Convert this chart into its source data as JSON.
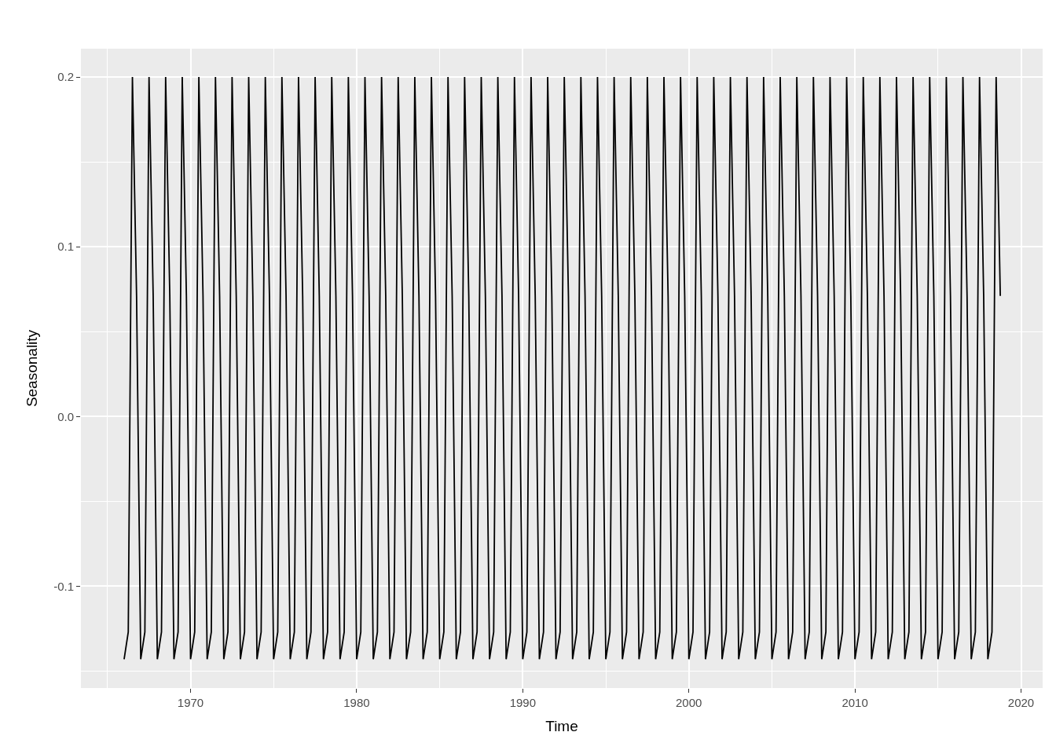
{
  "chart_data": {
    "type": "line",
    "xlabel": "Time",
    "ylabel": "Seasonality",
    "x": [
      1966,
      1966.25,
      1966.5,
      1966.75,
      1967,
      1967.25,
      1967.5,
      1967.75,
      1968,
      1968.25,
      1968.5,
      1968.75,
      1969,
      1969.25,
      1969.5,
      1969.75,
      1970,
      1970.25,
      1970.5,
      1970.75,
      1971,
      1971.25,
      1971.5,
      1971.75,
      1972,
      1972.25,
      1972.5,
      1972.75,
      1973,
      1973.25,
      1973.5,
      1973.75,
      1974,
      1974.25,
      1974.5,
      1974.75,
      1975,
      1975.25,
      1975.5,
      1975.75,
      1976,
      1976.25,
      1976.5,
      1976.75,
      1977,
      1977.25,
      1977.5,
      1977.75,
      1978,
      1978.25,
      1978.5,
      1978.75,
      1979,
      1979.25,
      1979.5,
      1979.75,
      1980,
      1980.25,
      1980.5,
      1980.75,
      1981,
      1981.25,
      1981.5,
      1981.75,
      1982,
      1982.25,
      1982.5,
      1982.75,
      1983,
      1983.25,
      1983.5,
      1983.75,
      1984,
      1984.25,
      1984.5,
      1984.75,
      1985,
      1985.25,
      1985.5,
      1985.75,
      1986,
      1986.25,
      1986.5,
      1986.75,
      1987,
      1987.25,
      1987.5,
      1987.75,
      1988,
      1988.25,
      1988.5,
      1988.75,
      1989,
      1989.25,
      1989.5,
      1989.75,
      1990,
      1990.25,
      1990.5,
      1990.75,
      1991,
      1991.25,
      1991.5,
      1991.75,
      1992,
      1992.25,
      1992.5,
      1992.75,
      1993,
      1993.25,
      1993.5,
      1993.75,
      1994,
      1994.25,
      1994.5,
      1994.75,
      1995,
      1995.25,
      1995.5,
      1995.75,
      1996,
      1996.25,
      1996.5,
      1996.75,
      1997,
      1997.25,
      1997.5,
      1997.75,
      1998,
      1998.25,
      1998.5,
      1998.75,
      1999,
      1999.25,
      1999.5,
      1999.75,
      2000,
      2000.25,
      2000.5,
      2000.75,
      2001,
      2001.25,
      2001.5,
      2001.75,
      2002,
      2002.25,
      2002.5,
      2002.75,
      2003,
      2003.25,
      2003.5,
      2003.75,
      2004,
      2004.25,
      2004.5,
      2004.75,
      2005,
      2005.25,
      2005.5,
      2005.75,
      2006,
      2006.25,
      2006.5,
      2006.75,
      2007,
      2007.25,
      2007.5,
      2007.75,
      2008,
      2008.25,
      2008.5,
      2008.75,
      2009,
      2009.25,
      2009.5,
      2009.75,
      2010,
      2010.25,
      2010.5,
      2010.75,
      2011,
      2011.25,
      2011.5,
      2011.75,
      2012,
      2012.25,
      2012.5,
      2012.75,
      2013,
      2013.25,
      2013.5,
      2013.75,
      2014,
      2014.25,
      2014.5,
      2014.75,
      2015,
      2015.25,
      2015.5,
      2015.75,
      2016,
      2016.25,
      2016.5,
      2016.75,
      2017,
      2017.25,
      2017.5,
      2017.75,
      2018,
      2018.25,
      2018.5,
      2018.75
    ],
    "series": [
      {
        "color": "#000000",
        "values": [
          -0.143,
          -0.127,
          0.2,
          0.071,
          -0.143,
          -0.127,
          0.2,
          0.071,
          -0.143,
          -0.127,
          0.2,
          0.071,
          -0.143,
          -0.127,
          0.2,
          0.071,
          -0.143,
          -0.127,
          0.2,
          0.071,
          -0.143,
          -0.127,
          0.2,
          0.071,
          -0.143,
          -0.127,
          0.2,
          0.071,
          -0.143,
          -0.127,
          0.2,
          0.071,
          -0.143,
          -0.127,
          0.2,
          0.071,
          -0.143,
          -0.127,
          0.2,
          0.071,
          -0.143,
          -0.127,
          0.2,
          0.071,
          -0.143,
          -0.127,
          0.2,
          0.071,
          -0.143,
          -0.127,
          0.2,
          0.071,
          -0.143,
          -0.127,
          0.2,
          0.071,
          -0.143,
          -0.127,
          0.2,
          0.071,
          -0.143,
          -0.127,
          0.2,
          0.071,
          -0.143,
          -0.127,
          0.2,
          0.071,
          -0.143,
          -0.127,
          0.2,
          0.071,
          -0.143,
          -0.127,
          0.2,
          0.071,
          -0.143,
          -0.127,
          0.2,
          0.071,
          -0.143,
          -0.127,
          0.2,
          0.071,
          -0.143,
          -0.127,
          0.2,
          0.071,
          -0.143,
          -0.127,
          0.2,
          0.071,
          -0.143,
          -0.127,
          0.2,
          0.071,
          -0.143,
          -0.127,
          0.2,
          0.071,
          -0.143,
          -0.127,
          0.2,
          0.071,
          -0.143,
          -0.127,
          0.2,
          0.071,
          -0.143,
          -0.127,
          0.2,
          0.071,
          -0.143,
          -0.127,
          0.2,
          0.071,
          -0.143,
          -0.127,
          0.2,
          0.071,
          -0.143,
          -0.127,
          0.2,
          0.071,
          -0.143,
          -0.127,
          0.2,
          0.071,
          -0.143,
          -0.127,
          0.2,
          0.071,
          -0.143,
          -0.127,
          0.2,
          0.071,
          -0.143,
          -0.127,
          0.2,
          0.071,
          -0.143,
          -0.127,
          0.2,
          0.071,
          -0.143,
          -0.127,
          0.2,
          0.071,
          -0.143,
          -0.127,
          0.2,
          0.071,
          -0.143,
          -0.127,
          0.2,
          0.071,
          -0.143,
          -0.127,
          0.2,
          0.071,
          -0.143,
          -0.127,
          0.2,
          0.071,
          -0.143,
          -0.127,
          0.2,
          0.071,
          -0.143,
          -0.127,
          0.2,
          0.071,
          -0.143,
          -0.127,
          0.2,
          0.071,
          -0.143,
          -0.127,
          0.2,
          0.071,
          -0.143,
          -0.127,
          0.2,
          0.071,
          -0.143,
          -0.127,
          0.2,
          0.071,
          -0.143,
          -0.127,
          0.2,
          0.071,
          -0.143,
          -0.127,
          0.2,
          0.071,
          -0.143,
          -0.127,
          0.2,
          0.071,
          -0.143,
          -0.127,
          0.2,
          0.071,
          -0.143,
          -0.127,
          0.2,
          0.071,
          -0.143,
          -0.127,
          0.2,
          0.071
        ]
      }
    ],
    "xlim": [
      1963.4,
      2021.3
    ],
    "xticks": [
      1970,
      1980,
      1990,
      2000,
      2010,
      2020
    ],
    "ylim": [
      -0.16,
      0.2167
    ],
    "yticks": [
      {
        "value": -0.1,
        "label": "-0.1"
      },
      {
        "value": 0,
        "label": "0.0"
      },
      {
        "value": 0.1,
        "label": "0.1"
      },
      {
        "value": 0.2,
        "label": "0.2"
      }
    ],
    "grid": true,
    "legend": false,
    "marker": "none",
    "line_style": "solid"
  }
}
